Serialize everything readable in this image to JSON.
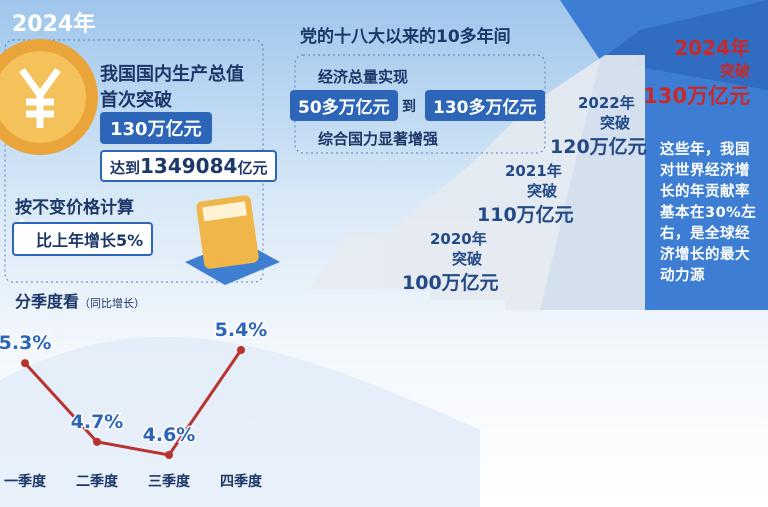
{
  "badge": "2024年",
  "gdp": {
    "line1": "我国国内生产总值",
    "line2": "首次突破",
    "headline": "130万亿元",
    "total_prefix": "达到",
    "total_value": "1349084",
    "total_unit": "亿元"
  },
  "constant_price": "按不变价格计算",
  "growth": "比上年增长5%",
  "chart_data": {
    "type": "line",
    "title": "分季度看",
    "subtitle": "（同比增长）",
    "categories": [
      "一季度",
      "二季度",
      "三季度",
      "四季度"
    ],
    "values": [
      5.3,
      4.7,
      4.6,
      5.4
    ],
    "value_labels": [
      "5.3%",
      "4.7%",
      "4.6%",
      "5.4%"
    ],
    "color": "#b8322e"
  },
  "decade": {
    "title": "党的十八大以来的10多年间",
    "line1": "经济总量实现",
    "from": "50多万亿元",
    "to_word": "到",
    "to": "130多万亿元",
    "line2": "综合国力显著增强"
  },
  "steps": [
    {
      "year": "2020年",
      "label": "突破",
      "amount": "100万亿元"
    },
    {
      "year": "2021年",
      "label": "突破",
      "amount": "110万亿元"
    },
    {
      "year": "2022年",
      "label": "突破",
      "amount": "120万亿元"
    }
  ],
  "highlight": {
    "year": "2024年",
    "label": "突破",
    "amount": "130万亿元",
    "text": "这些年，我国对世界经济增长的年贡献率基本在30%左右，是全球经济增长的最大动力源"
  }
}
